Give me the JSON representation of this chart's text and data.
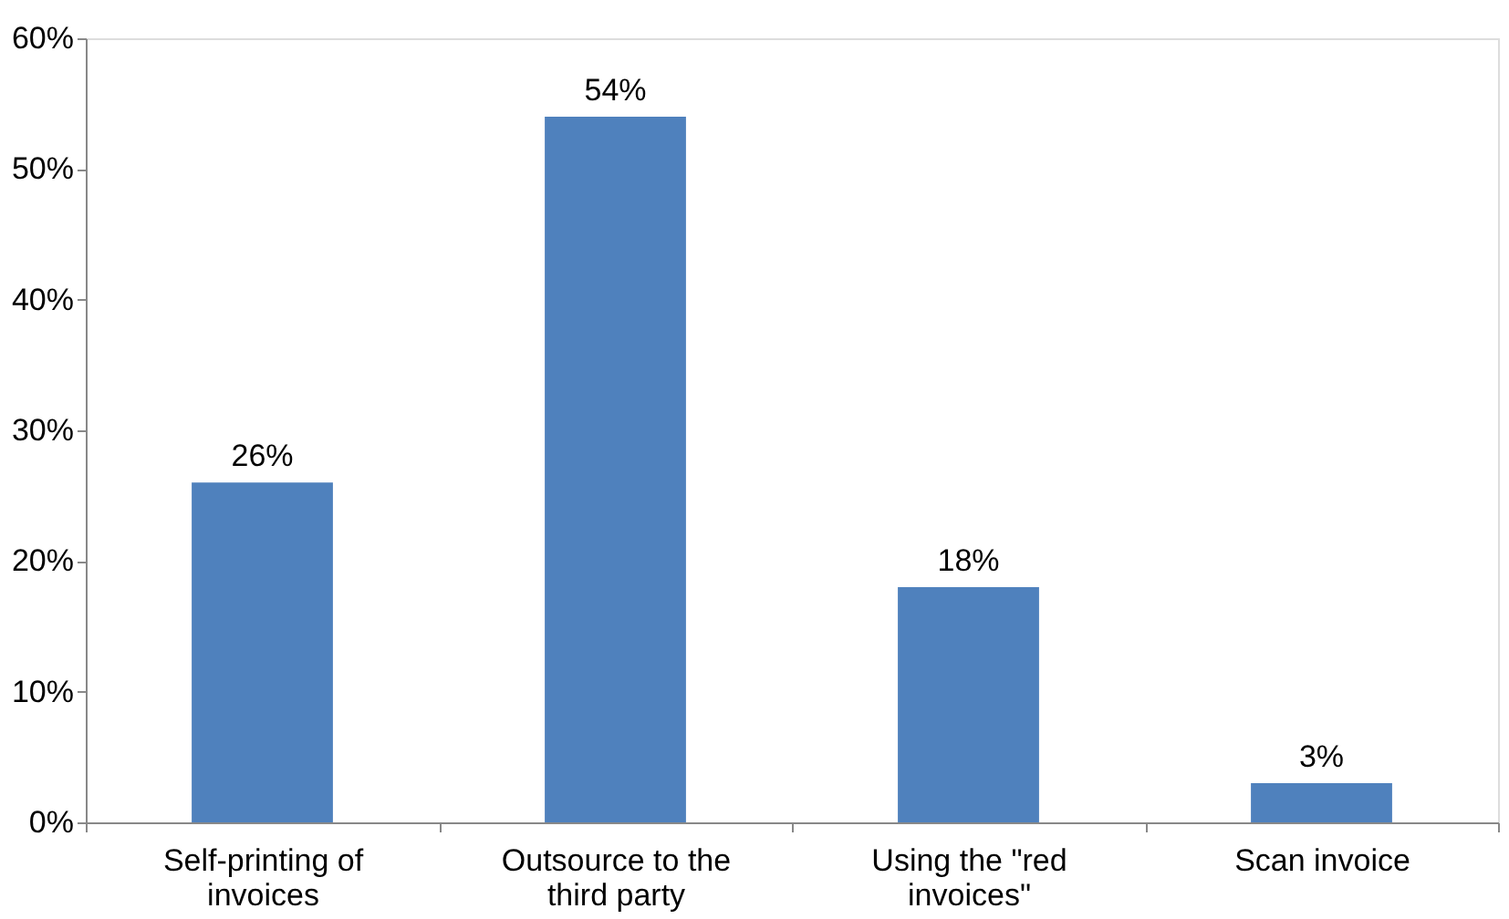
{
  "chart_data": {
    "type": "bar",
    "categories": [
      "Self-printing of invoices",
      "Outsource to the third party",
      "Using the \"red invoices\"",
      "Scan invoice"
    ],
    "values": [
      26,
      54,
      18,
      3
    ],
    "color": "#4f81bd",
    "ylim": [
      0,
      60
    ],
    "yticks": [
      {
        "value": 0,
        "label": "0%"
      },
      {
        "value": 10,
        "label": "10%"
      },
      {
        "value": 20,
        "label": "20%"
      },
      {
        "value": 30,
        "label": "30%"
      },
      {
        "value": 40,
        "label": "40%"
      },
      {
        "value": 50,
        "label": "50%"
      },
      {
        "value": 60,
        "label": "60%"
      }
    ],
    "value_labels": [
      "26%",
      "54%",
      "18%",
      "3%"
    ],
    "grid": false
  }
}
